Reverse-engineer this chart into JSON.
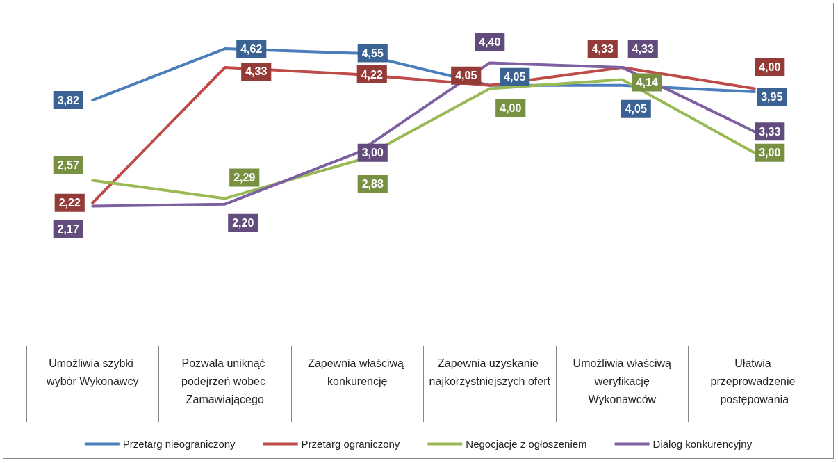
{
  "chart_data": {
    "type": "line",
    "categories": [
      "Umożliwia szybki wybór Wykonawcy",
      "Pozwala uniknąć podejrzeń wobec Zamawiającego",
      "Zapewnia właściwą konkurencję",
      "Zapewnia uzyskanie najkorzystniejszych ofert",
      "Umożliwia właściwą weryfikację Wykonawców",
      "Ułatwia przeprowadzenie postępowania"
    ],
    "series": [
      {
        "name": "Przetarg nieograniczony",
        "color": "#4a7ebb",
        "values": [
          3.82,
          4.62,
          4.55,
          4.05,
          4.05,
          3.95
        ],
        "value_labels": [
          "3,82",
          "4,62",
          "4,55",
          "4,05",
          "4,05",
          "3,95"
        ]
      },
      {
        "name": "Przetarg ograniczony",
        "color": "#be4b48",
        "values": [
          2.22,
          4.33,
          4.22,
          4.05,
          4.33,
          4.0
        ],
        "value_labels": [
          "2,22",
          "4,33",
          "4,22",
          "4,05",
          "4,33",
          "4,00"
        ]
      },
      {
        "name": "Negocjacje z ogłoszeniem",
        "color": "#98b954",
        "values": [
          2.57,
          2.29,
          2.88,
          4.0,
          4.14,
          3.0
        ],
        "value_labels": [
          "2,57",
          "2,29",
          "2,88",
          "4,00",
          "4,14",
          "3,00"
        ]
      },
      {
        "name": "Dialog konkurencyjny",
        "color": "#7d60a0",
        "values": [
          2.17,
          2.2,
          3.0,
          4.4,
          4.33,
          3.33
        ],
        "value_labels": [
          "2,17",
          "2,20",
          "3,00",
          "4,40",
          "4,33",
          "3,33"
        ]
      }
    ],
    "tick_labels": "x",
    "grid": false,
    "legend": "bottom",
    "marker": "none",
    "line_style": "solid"
  }
}
